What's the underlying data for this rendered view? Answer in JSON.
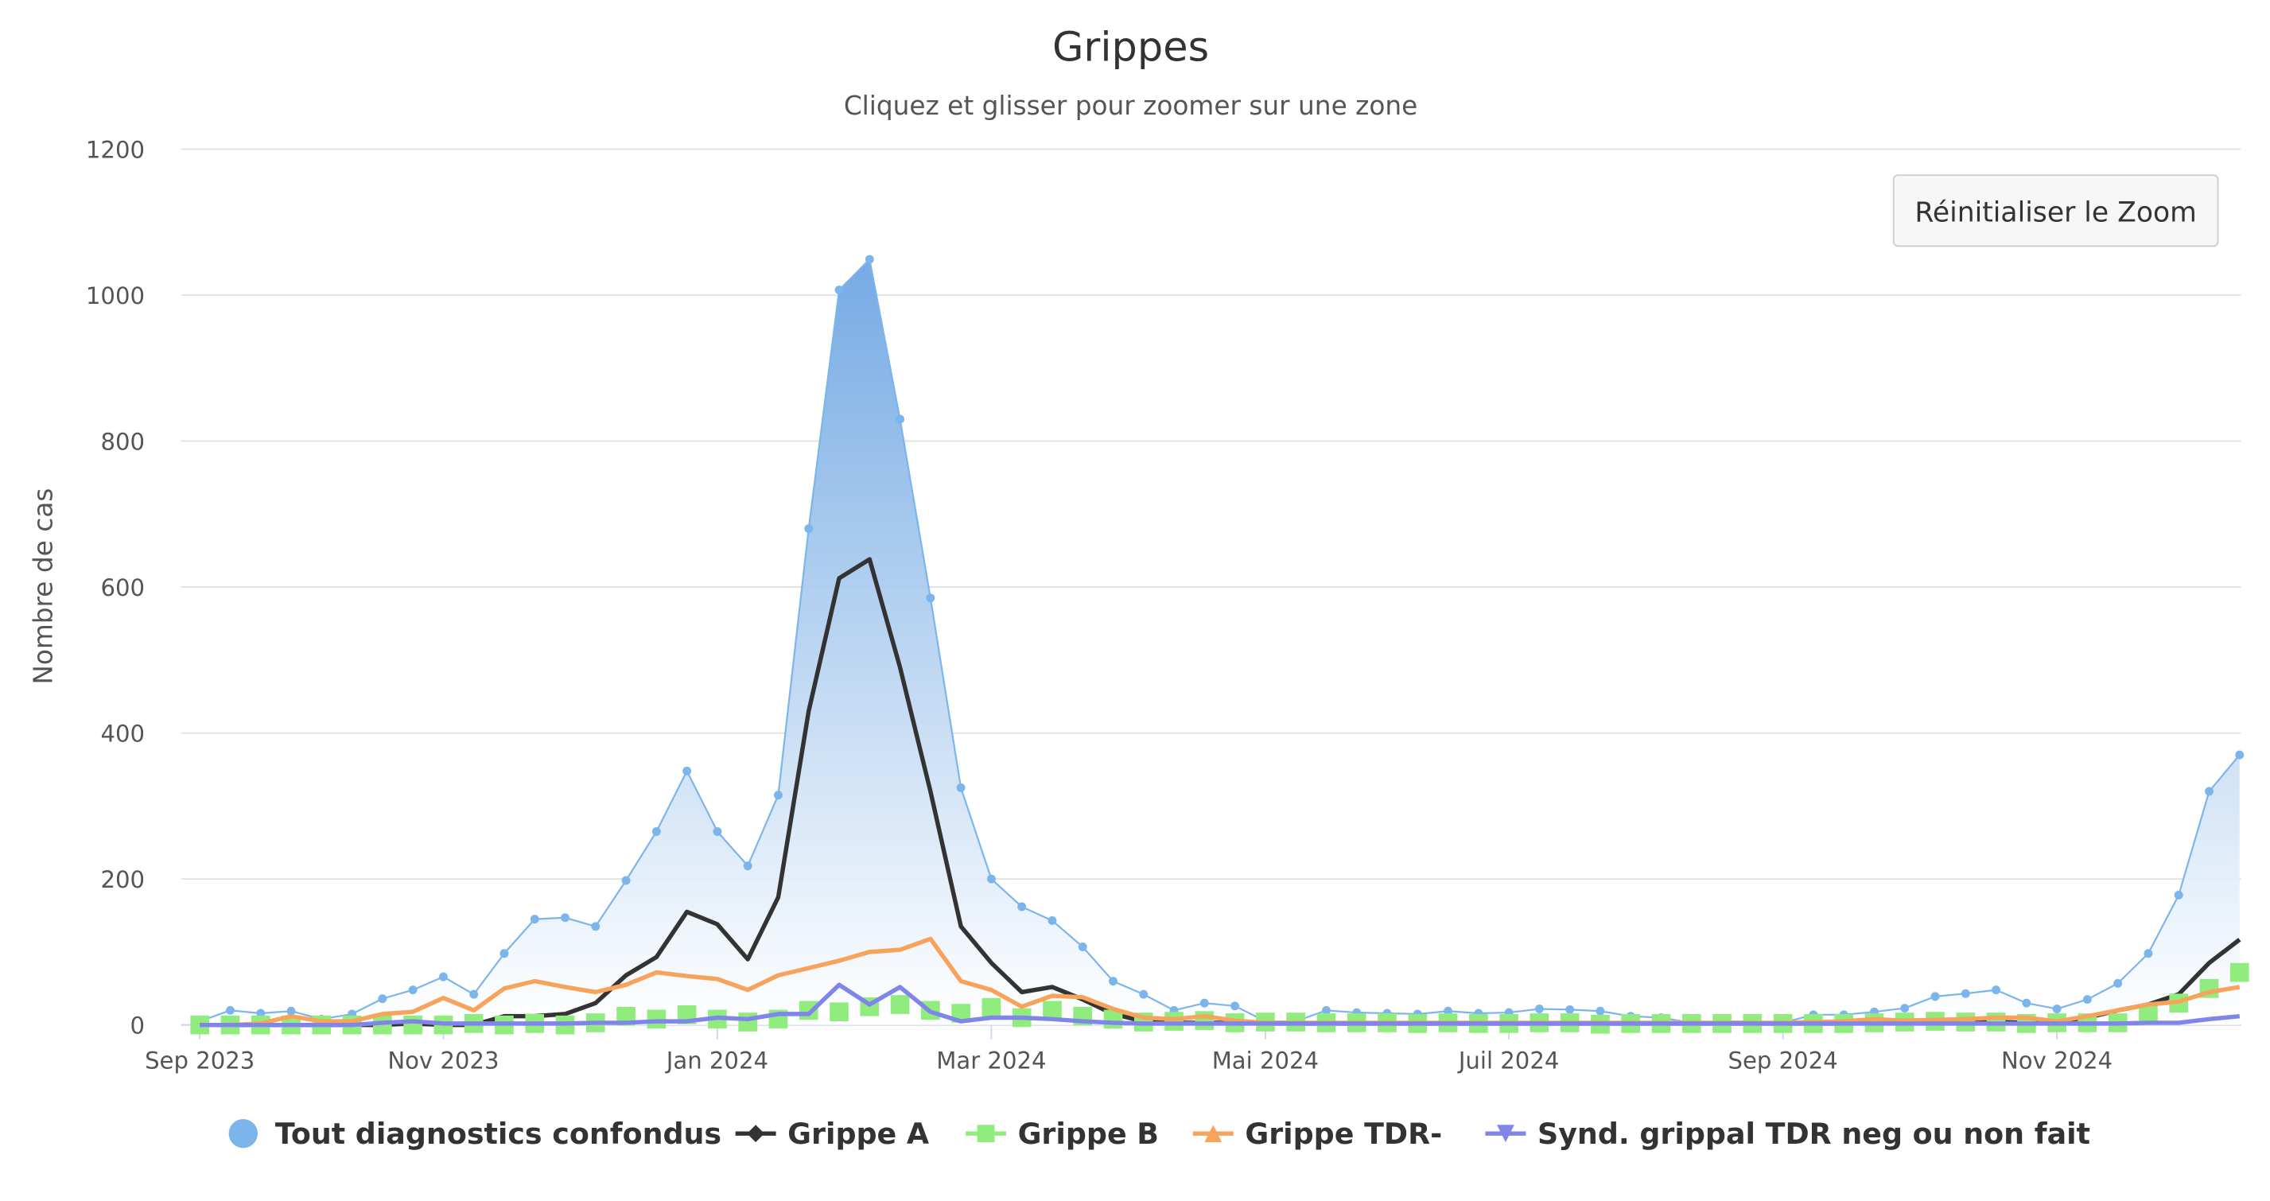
{
  "chart_data": {
    "type": "area-line",
    "title": "Grippes",
    "subtitle": "Cliquez et glisser pour zoomer sur une zone",
    "y_label": "Nombre de cas",
    "button": "Réinitialiser le Zoom",
    "grid": true,
    "legend": "bottom",
    "ylim": [
      0,
      1200
    ],
    "yticks": [
      0,
      200,
      400,
      600,
      800,
      1000,
      1200
    ],
    "categories": [
      "Sep 2023",
      null,
      null,
      null,
      null,
      null,
      null,
      null,
      "Nov 2023",
      null,
      null,
      null,
      null,
      null,
      null,
      null,
      null,
      "Jan 2024",
      null,
      null,
      null,
      null,
      null,
      null,
      null,
      null,
      "Mar 2024",
      null,
      null,
      null,
      null,
      null,
      null,
      null,
      null,
      "Mai 2024",
      null,
      null,
      null,
      null,
      null,
      null,
      null,
      "Juil 2024",
      null,
      null,
      null,
      null,
      null,
      null,
      null,
      null,
      "Sep 2024",
      null,
      null,
      null,
      null,
      null,
      null,
      null,
      null,
      "Nov 2024",
      null,
      null,
      null,
      null,
      null,
      null
    ],
    "series": [
      {
        "name": "Tout diagnostics confondus",
        "color": "#7cb5ec",
        "marker": "circle",
        "area": true,
        "line": true,
        "values": [
          5,
          20,
          16,
          19,
          8,
          15,
          36,
          48,
          66,
          42,
          98,
          145,
          147,
          135,
          198,
          265,
          348,
          265,
          218,
          315,
          680,
          1007,
          1049,
          830,
          585,
          325,
          200,
          162,
          143,
          107,
          60,
          42,
          20,
          30,
          26,
          5,
          5,
          20,
          17,
          16,
          15,
          19,
          16,
          17,
          22,
          21,
          19,
          12,
          10,
          3,
          5,
          5,
          3,
          14,
          14,
          18,
          23,
          39,
          43,
          48,
          30,
          22,
          35,
          57,
          98,
          178,
          320,
          370
        ]
      },
      {
        "name": "Grippe A",
        "color": "#333333",
        "marker": "diamond",
        "area": false,
        "line": true,
        "values": [
          0,
          0,
          0,
          0,
          0,
          0,
          0,
          2,
          0,
          0,
          12,
          12,
          15,
          30,
          68,
          93,
          155,
          138,
          90,
          175,
          430,
          612,
          638,
          490,
          320,
          135,
          85,
          45,
          52,
          35,
          15,
          5,
          3,
          3,
          3,
          2,
          2,
          2,
          2,
          2,
          2,
          2,
          2,
          2,
          2,
          2,
          2,
          2,
          2,
          2,
          2,
          2,
          2,
          2,
          2,
          3,
          3,
          3,
          4,
          4,
          3,
          5,
          10,
          20,
          28,
          42,
          85,
          117
        ]
      },
      {
        "name": "Grippe B",
        "color": "#90ed7d",
        "marker": "square",
        "area": false,
        "line": false,
        "values": [
          0,
          0,
          0,
          0,
          0,
          0,
          0,
          0,
          0,
          2,
          0,
          2,
          0,
          3,
          12,
          8,
          14,
          8,
          4,
          8,
          20,
          18,
          25,
          28,
          20,
          16,
          24,
          10,
          20,
          12,
          8,
          4,
          5,
          6,
          3,
          4,
          4,
          3,
          3,
          3,
          2,
          3,
          2,
          2,
          3,
          3,
          1,
          2,
          2,
          2,
          2,
          2,
          2,
          2,
          2,
          3,
          4,
          5,
          4,
          4,
          2,
          3,
          3,
          3,
          15,
          30,
          50,
          72
        ]
      },
      {
        "name": "Grippe TDR-",
        "color": "#f7a35c",
        "marker": "triangle",
        "area": false,
        "line": true,
        "values": [
          0,
          0,
          2,
          12,
          5,
          5,
          15,
          18,
          37,
          20,
          50,
          60,
          52,
          45,
          55,
          72,
          67,
          63,
          48,
          68,
          78,
          88,
          100,
          103,
          118,
          60,
          48,
          25,
          40,
          38,
          22,
          10,
          8,
          12,
          6,
          3,
          3,
          3,
          3,
          3,
          3,
          3,
          3,
          3,
          3,
          3,
          3,
          3,
          3,
          3,
          3,
          3,
          3,
          4,
          5,
          8,
          6,
          7,
          8,
          10,
          10,
          5,
          12,
          20,
          28,
          32,
          45,
          52
        ]
      },
      {
        "name": "Synd. grippal TDR neg ou non fait",
        "color": "#8085e9",
        "marker": "triangle-down",
        "area": false,
        "line": true,
        "values": [
          0,
          0,
          0,
          0,
          0,
          0,
          3,
          5,
          2,
          2,
          2,
          2,
          2,
          3,
          3,
          5,
          5,
          10,
          8,
          15,
          15,
          55,
          28,
          52,
          18,
          5,
          10,
          10,
          8,
          5,
          3,
          2,
          2,
          2,
          2,
          2,
          2,
          2,
          2,
          2,
          2,
          2,
          2,
          2,
          2,
          2,
          2,
          2,
          2,
          2,
          2,
          2,
          2,
          2,
          2,
          2,
          2,
          2,
          2,
          2,
          2,
          2,
          2,
          2,
          3,
          3,
          8,
          12
        ]
      }
    ]
  }
}
